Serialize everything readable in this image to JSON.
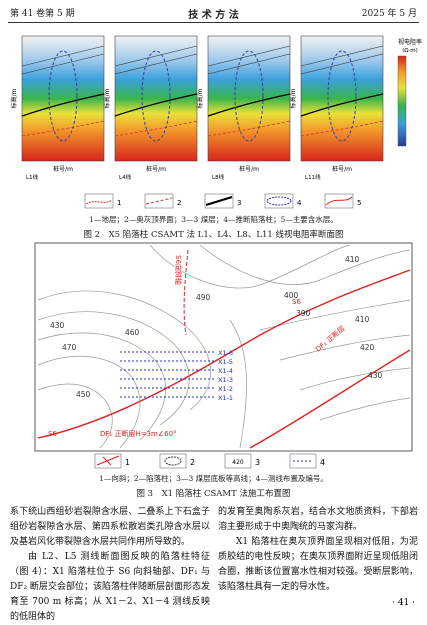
{
  "header": {
    "volume": "第 41 卷第 5 期",
    "section": "技 术 方 法",
    "date": "2025 年 5 月"
  },
  "figure2": {
    "panels": [
      {
        "y_axis": "标高/m",
        "x_axis": "桩号/m",
        "line": "L1线"
      },
      {
        "y_axis": "标高/m",
        "x_axis": "桩号/m",
        "line": "L4线"
      },
      {
        "y_axis": "标高/m",
        "x_axis": "桩号/m",
        "line": "L8线"
      },
      {
        "y_axis": "标高/m",
        "x_axis": "桩号/m",
        "line": "L11线"
      }
    ],
    "colorbar_title": "视电阻率",
    "colorbar_unit": "(Ω·m)",
    "legend_numbers": [
      "1",
      "2",
      "3",
      "4",
      "5"
    ],
    "legend_note": "1—地层；2—奥灰顶界面；3—3 煤层；4—推断陷落柱；5—主要含水层。",
    "caption": "图 2　X5 陷落柱 CSAMT 法 L1、L4、L8、L11 线视电阻率断面图"
  },
  "figure3": {
    "contour_labels": [
      "410",
      "400",
      "490",
      "390",
      "430",
      "460",
      "470",
      "450",
      "410",
      "420",
      "430"
    ],
    "line_labels": [
      "X1-6",
      "X1-5",
      "X1-4",
      "X1-3",
      "X1-2",
      "X1-1"
    ],
    "annotations": [
      "S6",
      "S6",
      "S6向斜轴",
      "DF₁ 正断层H=3m∠60°",
      "DF₂ 正断层"
    ],
    "legend_numbers": [
      "1",
      "2",
      "3",
      "4"
    ],
    "legend_sample": "420",
    "legend_note": "1—向斜；2—陷落柱；3—3 煤层底板等高线；4—测线布置及编号。",
    "caption": "图 3　X1 陷落柱 CSAMT 法施工布置图"
  },
  "body": {
    "left": [
      "系下统山西组砂岩裂隙含水层、二叠系上下石盒子组砂岩裂隙含水层、第四系松散岩类孔隙含水层以及基岩风化带裂隙含水层共同作用所导致的。",
      "由 L2、L5 测线断面图反映的陷落柱特征（图 4）：X1 陷落柱位于 S6 向斜轴部、DF₁ 与 DF₂ 断层交会部位；该陷落柱伴随断层剖面形态发育至 700 m 标高；从 X1－2、X1－4 测线反映的低阻体的"
    ],
    "right": [
      "的发育至奥陶系灰岩，结合水文地质资料，下部岩溶主要形成于中奥陶统的马家沟群。",
      "X1 陷落柱在奥灰顶界面呈现相对低阻，为泥质胶结的电性反映；在奥灰顶界面附近呈现低阻闭合圈，推断该位置富水性相对较强。受断层影响，该陷落柱具有一定的导水性。"
    ]
  },
  "page_number": "· 41 ·"
}
